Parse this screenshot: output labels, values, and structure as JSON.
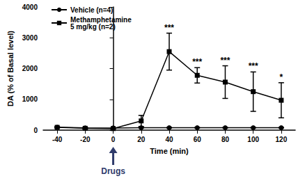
{
  "chart_data": {
    "type": "line",
    "x_label": "Time (min)",
    "y_label": "DA (% of Basal level)",
    "x": [
      -40,
      -20,
      0,
      20,
      40,
      60,
      80,
      100,
      120
    ],
    "xlim": [
      -50,
      130
    ],
    "xticks": [
      -40,
      -20,
      0,
      20,
      40,
      60,
      80,
      100,
      120
    ],
    "ylim": [
      0,
      4000
    ],
    "yticks": [
      0,
      1000,
      2000,
      3000,
      4000
    ],
    "grid": false,
    "legend": "top-left",
    "series": [
      {
        "name": "Vehicle (n=4)",
        "color": "#000000",
        "marker": "circle",
        "values": [
          95,
          75,
          70,
          80,
          80,
          80,
          80,
          80,
          80
        ],
        "errors": [
          15,
          10,
          10,
          10,
          10,
          10,
          10,
          10,
          10
        ]
      },
      {
        "name": "Methamphetamine\n5 mg/kg (n=2)",
        "color": "#000000",
        "marker": "square",
        "values": [
          90,
          60,
          50,
          300,
          2550,
          1780,
          1560,
          1250,
          970
        ],
        "errors": [
          20,
          20,
          20,
          180,
          600,
          250,
          530,
          640,
          570
        ]
      }
    ],
    "significance": [
      {
        "x": 40,
        "text": "***"
      },
      {
        "x": 60,
        "text": "***"
      },
      {
        "x": 80,
        "text": "***"
      },
      {
        "x": 100,
        "text": "***"
      },
      {
        "x": 120,
        "text": "*"
      }
    ],
    "arrow_label": {
      "x": 0,
      "text": "Drugs"
    }
  }
}
